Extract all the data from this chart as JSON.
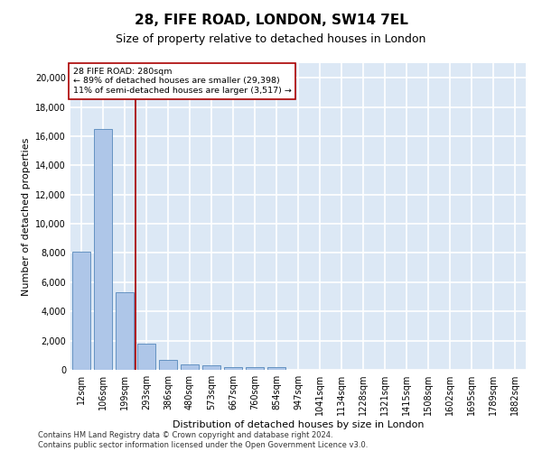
{
  "title": "28, FIFE ROAD, LONDON, SW14 7EL",
  "subtitle": "Size of property relative to detached houses in London",
  "xlabel": "Distribution of detached houses by size in London",
  "ylabel": "Number of detached properties",
  "categories": [
    "12sqm",
    "106sqm",
    "199sqm",
    "293sqm",
    "386sqm",
    "480sqm",
    "573sqm",
    "667sqm",
    "760sqm",
    "854sqm",
    "947sqm",
    "1041sqm",
    "1134sqm",
    "1228sqm",
    "1321sqm",
    "1415sqm",
    "1508sqm",
    "1602sqm",
    "1695sqm",
    "1789sqm",
    "1882sqm"
  ],
  "values": [
    8100,
    16500,
    5300,
    1800,
    700,
    350,
    280,
    210,
    200,
    180,
    0,
    0,
    0,
    0,
    0,
    0,
    0,
    0,
    0,
    0,
    0
  ],
  "bar_color": "#aec6e8",
  "bar_edge_color": "#5588bb",
  "vline_x": 2.5,
  "vline_color": "#aa0000",
  "annotation_text": "28 FIFE ROAD: 280sqm\n← 89% of detached houses are smaller (29,398)\n11% of semi-detached houses are larger (3,517) →",
  "annotation_box_color": "#ffffff",
  "annotation_box_edge": "#aa0000",
  "ylim": [
    0,
    21000
  ],
  "yticks": [
    0,
    2000,
    4000,
    6000,
    8000,
    10000,
    12000,
    14000,
    16000,
    18000,
    20000
  ],
  "background_color": "#dce8f5",
  "grid_color": "#ffffff",
  "title_fontsize": 11,
  "subtitle_fontsize": 9,
  "axis_label_fontsize": 8,
  "tick_fontsize": 7,
  "footer_text": "Contains HM Land Registry data © Crown copyright and database right 2024.\nContains public sector information licensed under the Open Government Licence v3.0."
}
